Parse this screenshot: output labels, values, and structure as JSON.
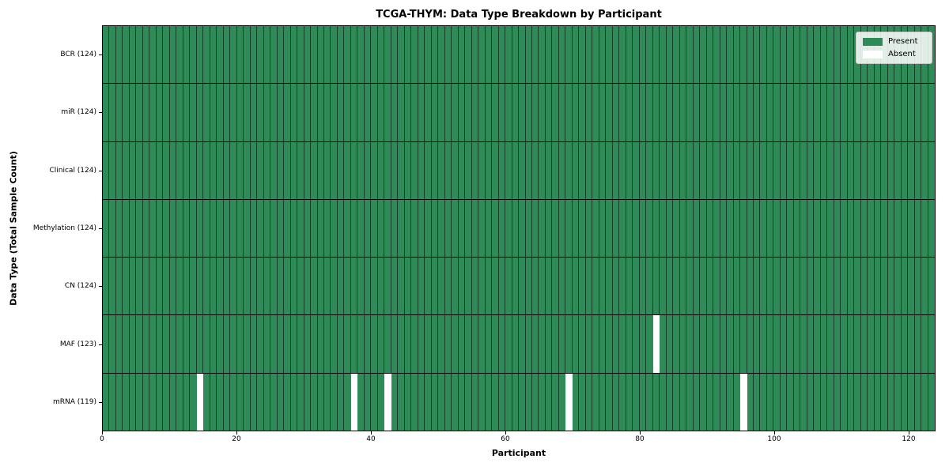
{
  "chart_data": {
    "type": "heatmap",
    "title": "TCGA-THYM: Data Type Breakdown by Participant",
    "xlabel": "Participant",
    "ylabel": "Data Type (Total Sample Count)",
    "n_participants": 124,
    "xlim": [
      0,
      124
    ],
    "x_ticks": [
      0,
      20,
      40,
      60,
      80,
      100,
      120
    ],
    "grid": true,
    "legend_position": "upper right",
    "legend": [
      {
        "label": "Present",
        "color": "#2e8b57"
      },
      {
        "label": "Absent",
        "color": "#ffffff"
      }
    ],
    "rows": [
      {
        "label": "BCR (124)",
        "data_type": "BCR",
        "present_count": 124,
        "absent_participants": []
      },
      {
        "label": "miR (124)",
        "data_type": "miR",
        "present_count": 124,
        "absent_participants": []
      },
      {
        "label": "Clinical (124)",
        "data_type": "Clinical",
        "present_count": 124,
        "absent_participants": []
      },
      {
        "label": "Methylation (124)",
        "data_type": "Methylation",
        "present_count": 124,
        "absent_participants": []
      },
      {
        "label": "CN (124)",
        "data_type": "CN",
        "present_count": 124,
        "absent_participants": []
      },
      {
        "label": "MAF (123)",
        "data_type": "MAF",
        "present_count": 123,
        "absent_participants": [
          82
        ]
      },
      {
        "label": "mRNA (119)",
        "data_type": "mRNA",
        "present_count": 119,
        "absent_participants": [
          14,
          37,
          42,
          69,
          95
        ]
      }
    ],
    "colors": {
      "present": "#2e8b57",
      "absent": "#ffffff",
      "cell_grid_line": "rgba(0,0,0,0.55)",
      "row_divider": "#000000",
      "frame": "#000000"
    }
  }
}
